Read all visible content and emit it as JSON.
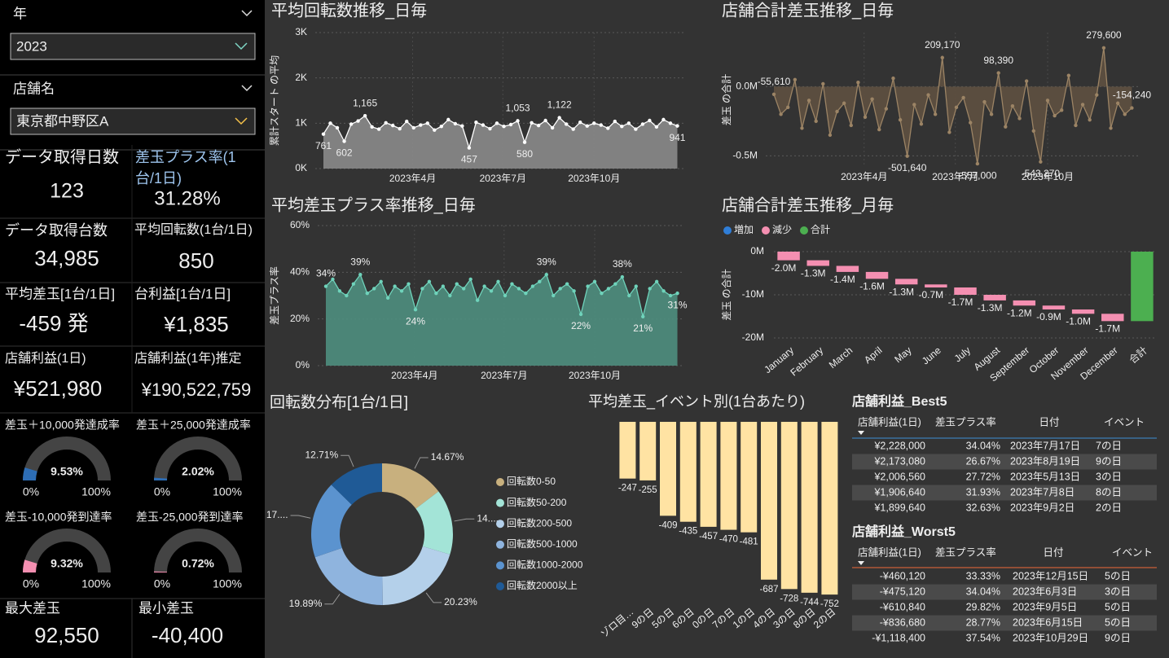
{
  "filters": [
    {
      "label": "年",
      "value": "2023",
      "color": "#7fd6c5"
    },
    {
      "label": "店舗名",
      "value": "東京都中野区A",
      "color": "#f5c14a"
    }
  ],
  "kpis": [
    {
      "label": "データ取得日数",
      "value": "123",
      "label_color": "#ffffff",
      "value_color": "#9ec5ee"
    },
    {
      "label": "差玉プラス率(1台/1日)",
      "value": "31.28%",
      "label_color": "#9ec5ee",
      "value_color": "#9ec5ee"
    },
    {
      "label": "データ取得台数",
      "value": "34,985",
      "label_color": "#ffffff",
      "value_color": "#ffffff"
    },
    {
      "label": "平均回転数(1台/1日)",
      "value": "850",
      "label_color": "#ffffff",
      "value_color": "#ffffff"
    },
    {
      "label": "平均差玉[1台/1日]",
      "value": "-459 発",
      "label_color": "#ffffff",
      "value_color": "#ffffff"
    },
    {
      "label": "台利益[1台/1日]",
      "value": "¥1,835",
      "label_color": "#ffffff",
      "value_color": "#ffffff"
    },
    {
      "label": "店舗利益(1日)",
      "value": "¥521,980",
      "label_color": "#ffffff",
      "value_color": "#ffffff"
    },
    {
      "label": "店舗利益(1年)推定",
      "value": "¥190,522,759",
      "label_color": "#ffffff",
      "value_color": "#ffffff"
    },
    {
      "label": "最大差玉",
      "value": "92,550",
      "label_color": "#5b9bd5",
      "value_color": "#5b9bd5"
    },
    {
      "label": "最小差玉",
      "value": "-40,400",
      "label_color": "#e0604f",
      "value_color": "#e0604f"
    }
  ],
  "gauges": [
    {
      "title": "差玉＋10,000発達成率",
      "value": 9.53,
      "value_label": "9.53%",
      "min": 0,
      "min_label": "0%",
      "max": 100,
      "max_label": "100%",
      "color": "#2d6db5",
      "label_color": "#8ec0f0"
    },
    {
      "title": "差玉＋25,000発達成率",
      "value": 2.02,
      "value_label": "2.02%",
      "min": 0,
      "min_label": "0%",
      "max": 100,
      "max_label": "100%",
      "color": "#2d6db5",
      "label_color": "#8ec0f0"
    },
    {
      "title": "差玉-10,000発到達率",
      "value": 9.32,
      "value_label": "9.32%",
      "min": 0,
      "min_label": "0%",
      "max": 100,
      "max_label": "100%",
      "color": "#f48fb1",
      "label_color": "#f48fb1"
    },
    {
      "title": "差玉-25,000発到達率",
      "value": 0.72,
      "value_label": "0.72%",
      "min": 0,
      "min_label": "0%",
      "max": 100,
      "max_label": "100%",
      "color": "#f48fb1",
      "label_color": "#f48fb1"
    }
  ],
  "chart_data": [
    {
      "type": "line",
      "title": "平均回転数推移_日毎",
      "title_color": "#ffffff",
      "y_label": "累計スタート の平均",
      "x": [
        1,
        8,
        15,
        22,
        29,
        36,
        43,
        50,
        57,
        64,
        71,
        78,
        85,
        92,
        99,
        106,
        113,
        120,
        127,
        134,
        141,
        148,
        155,
        162,
        169,
        176,
        183,
        190,
        197,
        204,
        211,
        218,
        225,
        232,
        239,
        246,
        253,
        260,
        267,
        274,
        281,
        288,
        295,
        302,
        309,
        316,
        323,
        330,
        337,
        344,
        351,
        358
      ],
      "values": [
        761,
        1000,
        900,
        602,
        980,
        1050,
        1165,
        920,
        870,
        1010,
        950,
        880,
        1040,
        900,
        960,
        1000,
        850,
        930,
        1080,
        990,
        940,
        457,
        1020,
        960,
        880,
        1000,
        930,
        970,
        1053,
        580,
        1010,
        950,
        1060,
        900,
        1122,
        980,
        870,
        1020,
        940,
        1000,
        960,
        890,
        1040,
        930,
        1000,
        870,
        980,
        1060,
        920,
        1080,
        1000,
        941
      ],
      "value_labels": [
        "761",
        null,
        null,
        "602",
        null,
        null,
        "1,165",
        null,
        null,
        null,
        null,
        null,
        null,
        null,
        null,
        null,
        null,
        null,
        null,
        null,
        null,
        "457",
        null,
        null,
        null,
        null,
        null,
        null,
        "1,053",
        "580",
        null,
        null,
        null,
        null,
        "1,122",
        null,
        null,
        null,
        null,
        null,
        null,
        null,
        null,
        null,
        null,
        null,
        null,
        null,
        null,
        null,
        null,
        "941"
      ],
      "xlim": [
        1,
        365
      ],
      "ylim": [
        0,
        3000
      ],
      "xticks": [
        {
          "value": 91,
          "label": "2023年4月"
        },
        {
          "value": 182,
          "label": "2023年7月"
        },
        {
          "value": 274,
          "label": "2023年10月"
        }
      ],
      "yticks": [
        {
          "value": 0,
          "label": "0K"
        },
        {
          "value": 1000,
          "label": "1K"
        },
        {
          "value": 2000,
          "label": "2K"
        },
        {
          "value": 3000,
          "label": "3K"
        }
      ],
      "color": "#ffffff",
      "area_color": "#8a8a8a",
      "grid": true
    },
    {
      "type": "line",
      "title": "平均差玉プラス率推移_日毎",
      "title_color": "#5fcfb0",
      "y_label": "差玉プラス率",
      "x": [
        1,
        8,
        15,
        22,
        29,
        36,
        43,
        50,
        57,
        64,
        71,
        78,
        85,
        92,
        99,
        106,
        113,
        120,
        127,
        134,
        141,
        148,
        155,
        162,
        169,
        176,
        183,
        190,
        197,
        204,
        211,
        218,
        225,
        232,
        239,
        246,
        253,
        260,
        267,
        274,
        281,
        288,
        295,
        302,
        309,
        316,
        323,
        330,
        337,
        344,
        351,
        358
      ],
      "values": [
        34,
        37,
        32,
        30,
        35,
        39,
        31,
        33,
        36,
        29,
        34,
        32,
        35,
        24,
        33,
        36,
        31,
        34,
        30,
        35,
        33,
        37,
        28,
        34,
        32,
        36,
        30,
        35,
        33,
        31,
        34,
        36,
        39,
        30,
        33,
        35,
        32,
        22,
        34,
        36,
        31,
        33,
        35,
        38,
        30,
        34,
        21,
        33,
        36,
        32,
        30,
        31
      ],
      "value_labels": [
        "34%",
        null,
        null,
        null,
        null,
        "39%",
        null,
        null,
        null,
        null,
        null,
        null,
        null,
        "24%",
        null,
        null,
        null,
        null,
        null,
        null,
        null,
        null,
        null,
        null,
        null,
        null,
        null,
        null,
        null,
        null,
        null,
        null,
        "39%",
        null,
        null,
        null,
        null,
        "22%",
        null,
        null,
        null,
        null,
        null,
        "38%",
        null,
        null,
        "21%",
        null,
        null,
        null,
        null,
        "31%"
      ],
      "xlim": [
        1,
        365
      ],
      "ylim": [
        0,
        60
      ],
      "xticks": [
        {
          "value": 91,
          "label": "2023年4月"
        },
        {
          "value": 182,
          "label": "2023年7月"
        },
        {
          "value": 274,
          "label": "2023年10月"
        }
      ],
      "yticks": [
        {
          "value": 0,
          "label": "0%"
        },
        {
          "value": 20,
          "label": "20%"
        },
        {
          "value": 40,
          "label": "40%"
        },
        {
          "value": 60,
          "label": "60%"
        }
      ],
      "color": "#6fd3bb",
      "area_color": "#4e8e7e",
      "grid": true
    },
    {
      "type": "line",
      "title": "店舗合計差玉推移_日毎",
      "title_color": "#7fa9d6",
      "y_label": "差玉 の合計",
      "x": [
        1,
        8,
        15,
        22,
        29,
        36,
        43,
        50,
        57,
        64,
        71,
        78,
        85,
        92,
        99,
        106,
        113,
        120,
        127,
        134,
        141,
        148,
        155,
        162,
        169,
        176,
        183,
        190,
        197,
        204,
        211,
        218,
        225,
        232,
        239,
        246,
        253,
        260,
        267,
        274,
        281,
        288,
        295,
        302,
        309,
        316,
        323,
        330,
        337,
        344,
        351,
        358
      ],
      "values": [
        -55610,
        -200000,
        -150000,
        50000,
        -300000,
        -100000,
        -250000,
        20000,
        -350000,
        -180000,
        -120000,
        -280000,
        30000,
        -220000,
        -90000,
        -310000,
        -160000,
        60000,
        -240000,
        -501640,
        -130000,
        -270000,
        -60000,
        -200000,
        209170,
        -330000,
        -150000,
        -80000,
        -260000,
        -557000,
        -110000,
        -200000,
        98390,
        -290000,
        -140000,
        -230000,
        40000,
        -320000,
        -543270,
        -100000,
        -210000,
        -170000,
        80000,
        -280000,
        -130000,
        -240000,
        -60000,
        279600,
        -300000,
        -120000,
        -200000,
        -154240
      ],
      "value_labels": [
        "-55,610",
        null,
        null,
        null,
        null,
        null,
        null,
        null,
        null,
        null,
        null,
        null,
        null,
        null,
        null,
        null,
        null,
        null,
        null,
        "-501,640",
        null,
        null,
        null,
        null,
        "209,170",
        null,
        null,
        null,
        null,
        "-557,000",
        null,
        null,
        "98,390",
        null,
        null,
        null,
        null,
        null,
        "-543,270",
        null,
        null,
        null,
        null,
        null,
        null,
        null,
        null,
        "279,600",
        null,
        null,
        null,
        "-154,240"
      ],
      "xlim": [
        1,
        365
      ],
      "ylim": [
        -580000,
        390000
      ],
      "xticks": [
        {
          "value": 91,
          "label": "2023年4月"
        },
        {
          "value": 182,
          "label": "2023年7月"
        },
        {
          "value": 274,
          "label": "2023年10月"
        }
      ],
      "yticks": [
        {
          "value": 0,
          "label": "0.0M"
        },
        {
          "value": -500000,
          "label": "-0.5M"
        }
      ],
      "color": "#9c8465",
      "area_color": "#5e5040",
      "grid": true
    },
    {
      "type": "waterfall",
      "title": "店舗合計差玉推移_月毎",
      "title_color": "#ffffff",
      "y_label": "差玉 の合計",
      "legend": [
        {
          "name": "増加",
          "color": "#2f7ed8"
        },
        {
          "name": "減少",
          "color": "#f48fb1"
        },
        {
          "name": "合計",
          "color": "#4caf50"
        }
      ],
      "categories": [
        "January",
        "February",
        "March",
        "April",
        "May",
        "June",
        "July",
        "August",
        "September",
        "October",
        "November",
        "December",
        "合計"
      ],
      "values": [
        -2000000,
        -1300000,
        -1400000,
        -1600000,
        -1300000,
        -700000,
        -1700000,
        -1300000,
        -1200000,
        -900000,
        -1000000,
        -1700000,
        -16100000
      ],
      "value_labels": [
        "-2.0M",
        "-1.3M",
        "-1.4M",
        "-1.6M",
        "-1.3M",
        "-0.7M",
        "-1.7M",
        "-1.3M",
        "-1.2M",
        "-0.9M",
        "-1.0M",
        "-1.7M",
        null
      ],
      "is_total": [
        false,
        false,
        false,
        false,
        false,
        false,
        false,
        false,
        false,
        false,
        false,
        false,
        true
      ],
      "ylim": [
        -20000000,
        0
      ],
      "yticks": [
        {
          "value": 0,
          "label": "0M"
        },
        {
          "value": -10000000,
          "label": "-10M"
        },
        {
          "value": -20000000,
          "label": "-20M"
        }
      ],
      "grid": true
    },
    {
      "type": "pie",
      "title": "回転数分布[1台/1日]",
      "title_color": "#ffffff",
      "donut": true,
      "categories": [
        "回転数0-50",
        "回転数50-200",
        "回転数200-500",
        "回転数500-1000",
        "回転数1000-2000",
        "回転数2000以上"
      ],
      "values": [
        14.67,
        14.95,
        20.23,
        19.89,
        17.55,
        12.71
      ],
      "value_labels": [
        "14.67%",
        "14....",
        "20.23%",
        "19.89%",
        "17....",
        "12.71%"
      ],
      "colors": [
        "#c8b07e",
        "#a3e4d7",
        "#b4d0ea",
        "#8fb4de",
        "#5b93cf",
        "#1f5a96"
      ]
    },
    {
      "type": "bar",
      "title": "平均差玉_イベント別(1台あたり)",
      "title_color": "#f5c842",
      "categories": [
        "ゾロ目…",
        "9の日",
        "5の日",
        "6の日",
        "0の日",
        "7の日",
        "1の日",
        "4の日",
        "3の日",
        "8の日",
        "2の日"
      ],
      "values": [
        -247,
        -255,
        -409,
        -435,
        -457,
        -470,
        -481,
        -687,
        -728,
        -744,
        -752
      ],
      "ylim": [
        -780,
        0
      ],
      "color": "#ffe3a3"
    }
  ],
  "tables": [
    {
      "title": "店舗利益_Best5",
      "title_color": "#3d8fd6",
      "line_color": "#3d8fd6",
      "columns": [
        "店舗利益(1日)",
        "差玉プラス率",
        "日付",
        "イベント"
      ],
      "rows": [
        [
          "¥2,228,000",
          "34.04%",
          "2023年7月17日",
          "7の日"
        ],
        [
          "¥2,173,080",
          "26.67%",
          "2023年8月19日",
          "9の日"
        ],
        [
          "¥2,006,560",
          "27.72%",
          "2023年5月13日",
          "3の日"
        ],
        [
          "¥1,906,640",
          "31.93%",
          "2023年7月8日",
          "8の日"
        ],
        [
          "¥1,899,640",
          "32.63%",
          "2023年9月2日",
          "2の日"
        ]
      ]
    },
    {
      "title": "店舗利益_Worst5",
      "title_color": "#f06a3a",
      "line_color": "#f06a3a",
      "columns": [
        "店舗利益(1日)",
        "差玉プラス率",
        "日付",
        "イベント"
      ],
      "rows": [
        [
          "-¥460,120",
          "33.33%",
          "2023年12月15日",
          "5の日"
        ],
        [
          "-¥475,120",
          "34.04%",
          "2023年6月3日",
          "3の日"
        ],
        [
          "-¥610,840",
          "29.82%",
          "2023年9月5日",
          "5の日"
        ],
        [
          "-¥836,680",
          "28.77%",
          "2023年6月15日",
          "5の日"
        ],
        [
          "-¥1,118,400",
          "37.54%",
          "2023年10月29日",
          "9の日"
        ]
      ]
    }
  ]
}
